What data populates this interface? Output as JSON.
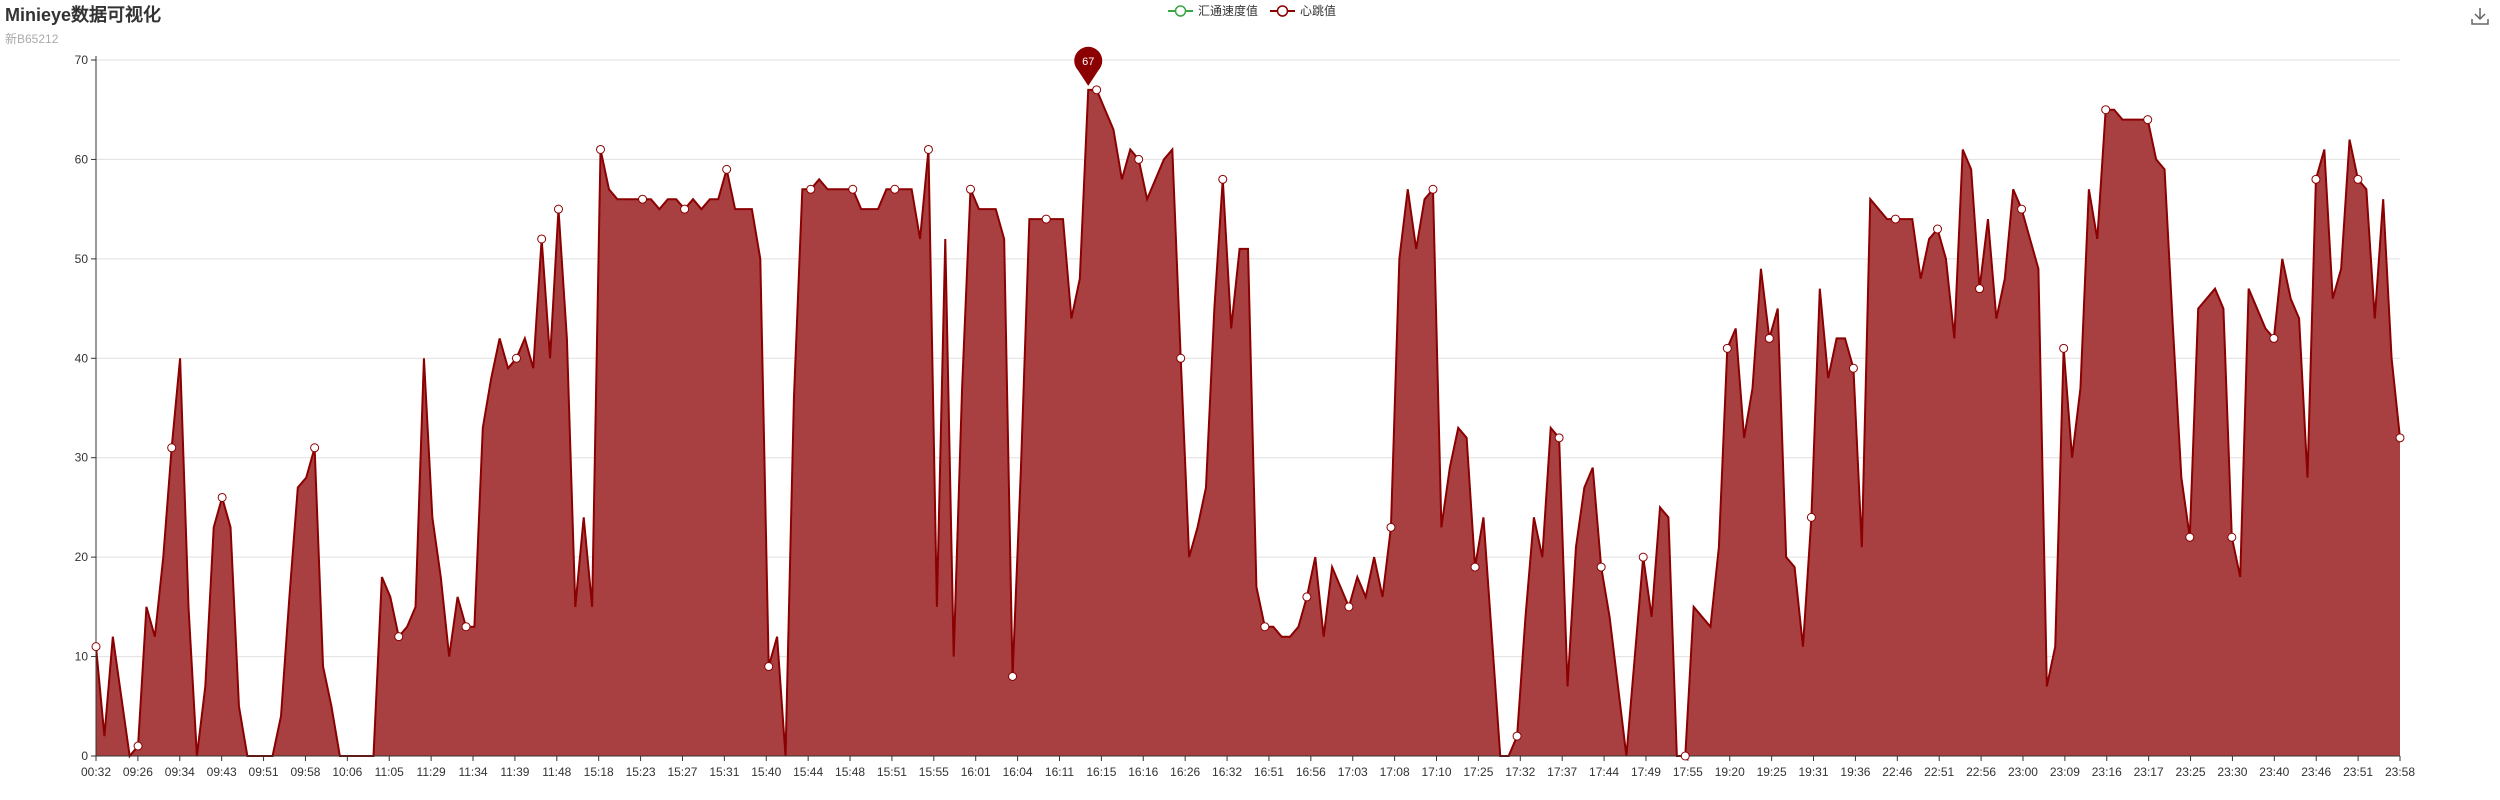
{
  "header": {
    "title": "Minieye数据可视化",
    "subtitle": "新B65212"
  },
  "toolbox": {
    "icon": "download-icon"
  },
  "colors": {
    "accent": "#8b0000",
    "area": "#a84042",
    "series_gps": "#3ba543",
    "marker_fill": "#ffffff",
    "grid": "#e0e0e0",
    "axis": "#333333"
  },
  "chart_data": {
    "type": "area",
    "legend_position": "top-center",
    "grid": true,
    "ylim": [
      0,
      70
    ],
    "yticks": [
      "0",
      "10",
      "20",
      "30",
      "40",
      "50",
      "60",
      "70"
    ],
    "xtick_labels": [
      "00:32",
      "09:26",
      "09:34",
      "09:43",
      "09:51",
      "09:58",
      "10:06",
      "11:05",
      "11:29",
      "11:34",
      "11:39",
      "11:48",
      "15:18",
      "15:23",
      "15:27",
      "15:31",
      "15:40",
      "15:44",
      "15:48",
      "15:51",
      "15:55",
      "16:01",
      "16:04",
      "16:11",
      "16:15",
      "16:16",
      "16:26",
      "16:32",
      "16:51",
      "16:56",
      "17:03",
      "17:08",
      "17:10",
      "17:25",
      "17:32",
      "17:37",
      "17:44",
      "17:49",
      "17:55",
      "19:20",
      "19:25",
      "19:31",
      "19:36",
      "22:46",
      "22:51",
      "22:56",
      "23:00",
      "23:09",
      "23:16",
      "23:17",
      "23:25",
      "23:30",
      "23:40",
      "23:46",
      "23:51",
      "23:58"
    ],
    "series": [
      {
        "name": "汇通速度值",
        "values": []
      },
      {
        "name": "心跳值",
        "values": [
          11,
          2,
          12,
          6,
          0,
          1,
          15,
          12,
          20,
          31,
          40,
          15,
          0,
          7,
          23,
          26,
          23,
          5,
          0,
          0,
          0,
          0,
          4,
          16,
          27,
          28,
          31,
          9,
          5,
          0,
          0,
          0,
          0,
          0,
          18,
          16,
          12,
          13,
          15,
          40,
          24,
          18,
          10,
          16,
          13,
          13,
          33,
          38,
          42,
          39,
          40,
          42,
          39,
          52,
          40,
          55,
          42,
          15,
          24,
          15,
          61,
          57,
          56,
          56,
          56,
          56,
          56,
          55,
          56,
          56,
          55,
          56,
          55,
          56,
          56,
          59,
          55,
          55,
          55,
          50,
          9,
          12,
          0,
          36,
          57,
          57,
          58,
          57,
          57,
          57,
          57,
          55,
          55,
          55,
          57,
          57,
          57,
          57,
          52,
          61,
          15,
          52,
          10,
          37,
          57,
          55,
          55,
          55,
          52,
          8,
          29,
          54,
          54,
          54,
          54,
          54,
          44,
          48,
          67,
          67,
          65,
          63,
          58,
          61,
          60,
          56,
          58,
          60,
          61,
          40,
          20,
          23,
          27,
          45,
          58,
          43,
          51,
          51,
          17,
          13,
          13,
          12,
          12,
          13,
          16,
          20,
          12,
          19,
          17,
          15,
          18,
          16,
          20,
          16,
          23,
          50,
          57,
          51,
          56,
          57,
          23,
          29,
          33,
          32,
          19,
          24,
          12,
          0,
          0,
          2,
          14,
          24,
          20,
          33,
          32,
          7,
          21,
          27,
          29,
          19,
          14,
          7,
          0,
          10,
          20,
          14,
          25,
          24,
          0,
          0,
          15,
          14,
          13,
          21,
          41,
          43,
          32,
          37,
          49,
          42,
          45,
          20,
          19,
          11,
          24,
          47,
          38,
          42,
          42,
          39,
          21,
          56,
          55,
          54,
          54,
          54,
          54,
          48,
          52,
          53,
          50,
          42,
          61,
          59,
          47,
          54,
          44,
          48,
          57,
          55,
          52,
          49,
          7,
          11,
          41,
          30,
          37,
          57,
          52,
          65,
          65,
          64,
          64,
          64,
          64,
          60,
          59,
          43,
          28,
          22,
          45,
          46,
          47,
          45,
          22,
          18,
          47,
          45,
          43,
          42,
          50,
          46,
          44,
          28,
          58,
          61,
          46,
          49,
          62,
          58,
          57,
          44,
          56,
          40,
          32
        ]
      }
    ],
    "marked_points": [
      0,
      5,
      9,
      15,
      26,
      36,
      44,
      50,
      53,
      55,
      60,
      65,
      70,
      75,
      80,
      85,
      90,
      95,
      99,
      104,
      109,
      113,
      119,
      124,
      129,
      134,
      139,
      144,
      149,
      154,
      159,
      164,
      169,
      174,
      179,
      184,
      189,
      194,
      199,
      204,
      209,
      214,
      219,
      224,
      229,
      234,
      239,
      244,
      249,
      254,
      259,
      264,
      269,
      274,
      276
    ],
    "max_label": "67"
  }
}
